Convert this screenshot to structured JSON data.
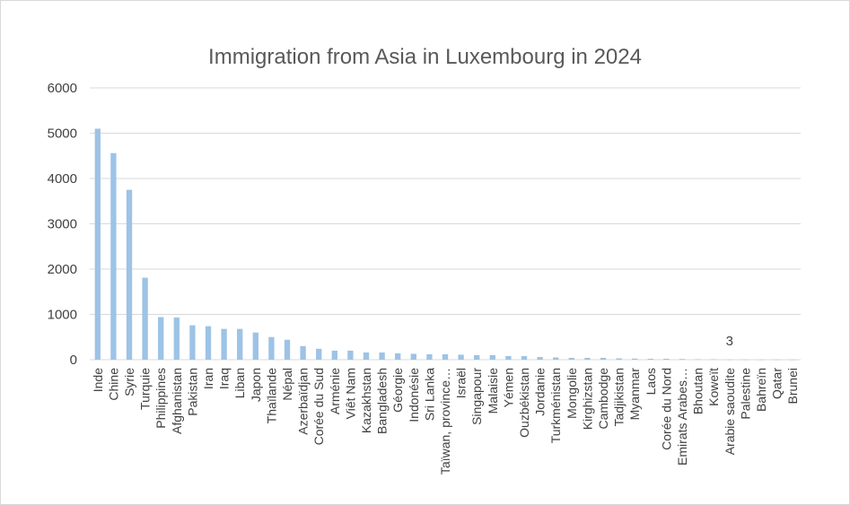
{
  "chart_data": {
    "type": "bar",
    "title": "Immigration from Asia in Luxembourg  in 2024",
    "xlabel": "",
    "ylabel": "",
    "ylim": [
      0,
      6000
    ],
    "yticks": [
      0,
      1000,
      2000,
      3000,
      4000,
      5000,
      6000
    ],
    "grid": true,
    "legend": "none",
    "bar_color": "#9dc3e6",
    "grid_color": "#d9d9d9",
    "annotations": [
      {
        "category": "Arabie saoudite",
        "text": "3"
      }
    ],
    "categories": [
      "Inde",
      "Chine",
      "Syrie",
      "Turquie",
      "Philippines",
      "Afghanistan",
      "Pakistan",
      "Iran",
      "Iraq",
      "Liban",
      "Japon",
      "Thaïlande",
      "Népal",
      "Azerbaïdjan",
      "Corée du Sud",
      "Arménie",
      "Viêt Nam",
      "Kazakhstan",
      "Bangladesh",
      "Géorgie",
      "Indonésie",
      "Sri Lanka",
      "Taïwan, province…",
      "Israël",
      "Singapour",
      "Malaisie",
      "Yémen",
      "Ouzbékistan",
      "Jordanie",
      "Turkménistan",
      "Mongolie",
      "Kirghizstan",
      "Cambodge",
      "Tadjikistan",
      "Myanmar",
      "Laos",
      "Corée du Nord",
      "Emirats Arabes…",
      "Bhoutan",
      "Koweït",
      "Arabie saoudite",
      "Palestine",
      "Bahreïn",
      "Qatar",
      "Brunei"
    ],
    "values": [
      5100,
      4560,
      3750,
      1810,
      940,
      930,
      760,
      740,
      680,
      680,
      600,
      500,
      440,
      300,
      240,
      200,
      200,
      160,
      160,
      140,
      130,
      120,
      120,
      110,
      100,
      100,
      80,
      80,
      60,
      50,
      40,
      40,
      40,
      30,
      25,
      20,
      20,
      15,
      10,
      8,
      3,
      3,
      2,
      2,
      1
    ]
  }
}
